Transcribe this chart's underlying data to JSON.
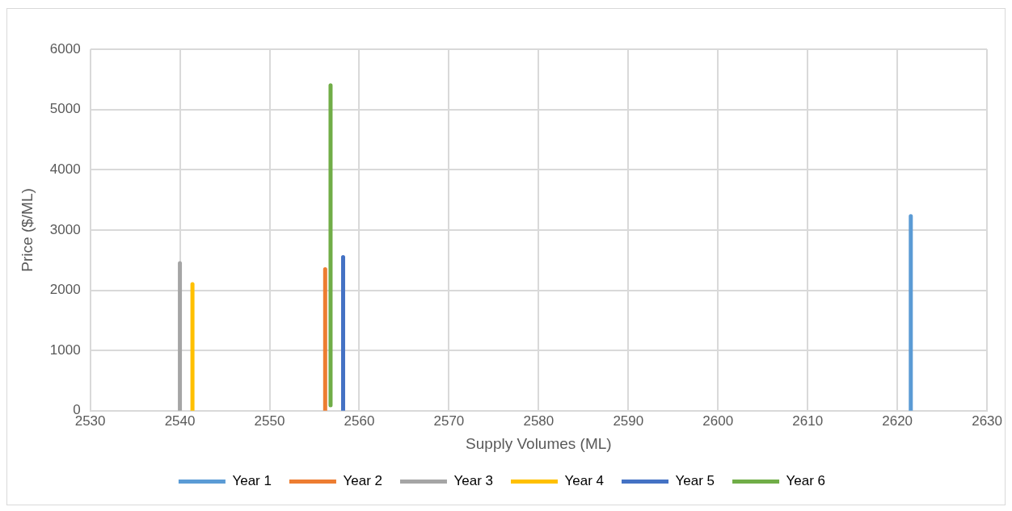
{
  "chart_data": {
    "type": "line",
    "xlabel": "Supply Volumes (ML)",
    "ylabel": "Price ($/ML)",
    "xlim": [
      2530,
      2630
    ],
    "xticks": [
      2530,
      2540,
      2550,
      2560,
      2570,
      2580,
      2590,
      2600,
      2610,
      2620,
      2630
    ],
    "ylim": [
      0,
      6000
    ],
    "yticks": [
      0,
      1000,
      2000,
      3000,
      4000,
      5000,
      6000
    ],
    "grid": true,
    "legend": "bottom",
    "marker": "none",
    "line_style": "solid",
    "series": [
      {
        "name": "Year 1",
        "color": "#5b9bd5",
        "x": [
          2621.5,
          2621.5
        ],
        "values": [
          0,
          3230
        ]
      },
      {
        "name": "Year 2",
        "color": "#ed7d31",
        "x": [
          2556.2,
          2556.2
        ],
        "values": [
          0,
          2350
        ]
      },
      {
        "name": "Year 3",
        "color": "#a5a5a5",
        "x": [
          2540,
          2540
        ],
        "values": [
          0,
          2450
        ]
      },
      {
        "name": "Year 4",
        "color": "#ffc000",
        "x": [
          2541.4,
          2541.4
        ],
        "values": [
          0,
          2100
        ]
      },
      {
        "name": "Year 5",
        "color": "#4472c4",
        "x": [
          2558.2,
          2558.2
        ],
        "values": [
          0,
          2550
        ]
      },
      {
        "name": "Year 6",
        "color": "#70ad47",
        "x": [
          2556.8,
          2556.8
        ],
        "values": [
          90,
          5400
        ]
      }
    ]
  }
}
